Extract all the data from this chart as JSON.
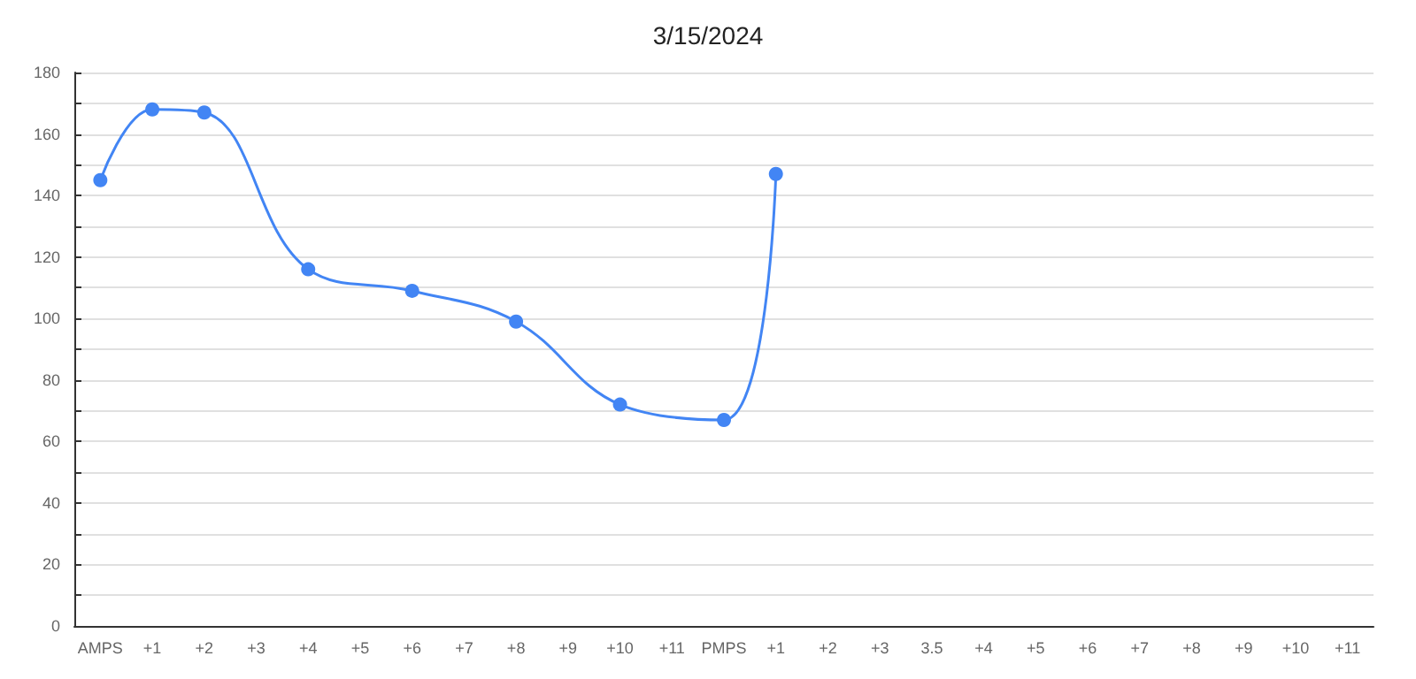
{
  "chart_data": {
    "type": "line",
    "title": "3/15/2024",
    "categories": [
      "AMPS",
      "+1",
      "+2",
      "+3",
      "+4",
      "+5",
      "+6",
      "+7",
      "+8",
      "+9",
      "+10",
      "+11",
      "PMPS",
      "+1",
      "+2",
      "+3",
      "3.5",
      "+4",
      "+5",
      "+6",
      "+7",
      "+8",
      "+9",
      "+10",
      "+11"
    ],
    "series": [
      {
        "color": "#4285f4",
        "values": [
          145,
          168,
          167,
          null,
          116,
          null,
          109,
          null,
          99,
          null,
          72,
          null,
          67,
          147,
          null,
          null,
          null,
          null,
          null,
          null,
          null,
          null,
          null,
          null,
          null
        ]
      }
    ],
    "ylim": [
      0,
      180
    ],
    "yticks": [
      0,
      {
        "value": 10,
        "label": null
      },
      20,
      {
        "value": 30,
        "label": null
      },
      40,
      {
        "value": 50,
        "label": null
      },
      60,
      {
        "value": 70,
        "label": null
      },
      80,
      {
        "value": 90,
        "label": null
      },
      100,
      {
        "value": 110,
        "label": null
      },
      120,
      {
        "value": 130,
        "label": null
      },
      140,
      {
        "value": 150,
        "label": null
      },
      160,
      {
        "value": 170,
        "label": null
      },
      180
    ],
    "grid": "y",
    "marker": "circle"
  }
}
